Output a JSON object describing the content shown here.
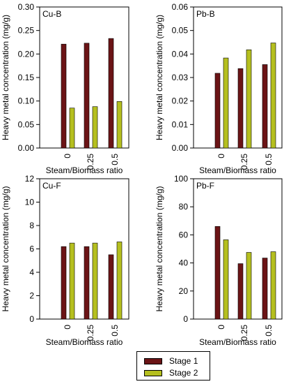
{
  "colors": {
    "stage1": "#6b1416",
    "stage2": "#b5bf1f"
  },
  "legend": {
    "items": [
      "Stage 1",
      "Stage 2"
    ]
  },
  "chart_data": [
    {
      "type": "bar",
      "title": "Cu-B",
      "xlabel": "Steam/Biomass ratio",
      "ylabel": "Heavy metal concentration (mg/g)",
      "categories": [
        "0",
        "0.25",
        "0.5"
      ],
      "ylim": [
        0,
        0.3
      ],
      "yticks": [
        "0.00",
        "0.05",
        "0.10",
        "0.15",
        "0.20",
        "0.25",
        "0.30"
      ],
      "series": [
        {
          "name": "Stage 1",
          "values": [
            0.221,
            0.223,
            0.233
          ]
        },
        {
          "name": "Stage 2",
          "values": [
            0.085,
            0.088,
            0.099
          ]
        }
      ]
    },
    {
      "type": "bar",
      "title": "Pb-B",
      "xlabel": "Steam/Biomass ratio",
      "ylabel": "Heavy metal concentration (mg/g)",
      "categories": [
        "0",
        "0.25",
        "0.5"
      ],
      "ylim": [
        0,
        0.06
      ],
      "yticks": [
        "0.00",
        "0.01",
        "0.02",
        "0.03",
        "0.04",
        "0.05",
        "0.06"
      ],
      "series": [
        {
          "name": "Stage 1",
          "values": [
            0.0318,
            0.0338,
            0.0355
          ]
        },
        {
          "name": "Stage 2",
          "values": [
            0.0383,
            0.0418,
            0.0447
          ]
        }
      ]
    },
    {
      "type": "bar",
      "title": "Cu-F",
      "xlabel": "Steam/Biomass ratio",
      "ylabel": "Heavy metal concentration (mg/g)",
      "categories": [
        "0",
        "0.25",
        "0.5"
      ],
      "ylim": [
        0,
        12
      ],
      "yticks": [
        "0",
        "2",
        "4",
        "6",
        "8",
        "10",
        "12"
      ],
      "series": [
        {
          "name": "Stage 1",
          "values": [
            6.2,
            6.2,
            5.5
          ]
        },
        {
          "name": "Stage 2",
          "values": [
            6.5,
            6.5,
            6.6
          ]
        }
      ]
    },
    {
      "type": "bar",
      "title": "Pb-F",
      "xlabel": "Steam/Biomass ratio",
      "ylabel": "Heavy metal concentration (mg/g)",
      "categories": [
        "0",
        "0.25",
        "0.5"
      ],
      "ylim": [
        0,
        100
      ],
      "yticks": [
        "0",
        "20",
        "40",
        "60",
        "80",
        "100"
      ],
      "series": [
        {
          "name": "Stage 1",
          "values": [
            66,
            39.5,
            43.5
          ]
        },
        {
          "name": "Stage 2",
          "values": [
            56.5,
            47.5,
            48
          ]
        }
      ]
    }
  ]
}
